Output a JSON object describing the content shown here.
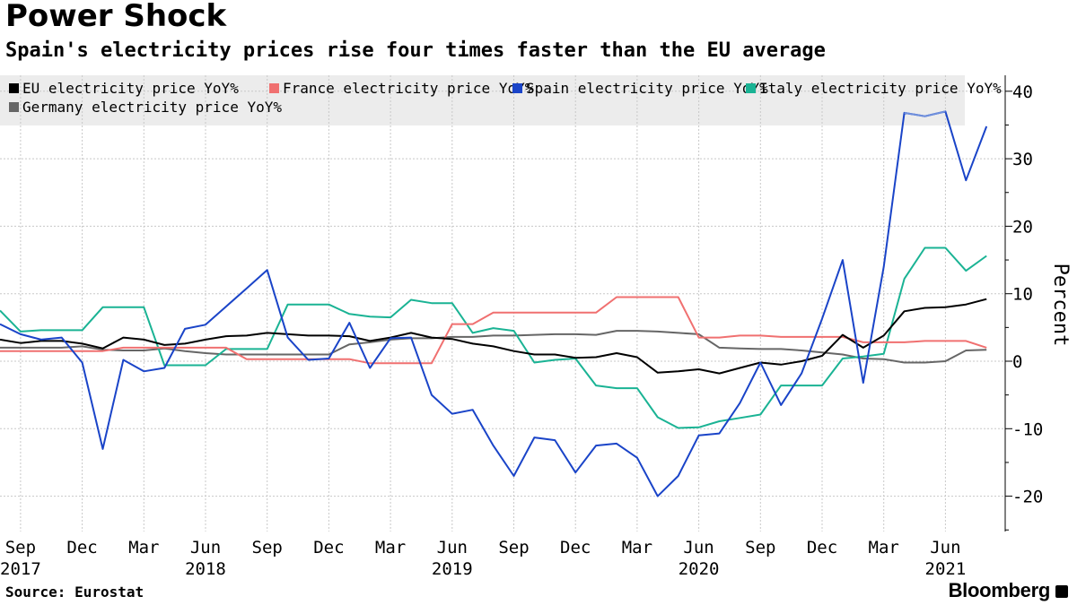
{
  "title": "Power Shock",
  "subtitle": "Spain's electricity prices rise four times faster than the EU average",
  "source": "Source: Eurostat",
  "brand": "Bloomberg",
  "chart_data": {
    "type": "line",
    "title": "Power Shock",
    "subtitle": "Spain's electricity prices rise four times faster than the EU average",
    "xlabel": "",
    "ylabel": "Percent",
    "ylim": [
      -25,
      42
    ],
    "yticks": [
      -20,
      -10,
      0,
      10,
      20,
      30,
      40
    ],
    "ytick_labels": [
      "-20",
      "-10",
      "0",
      "10",
      "20",
      "30",
      "40"
    ],
    "grid": true,
    "legend_position": "top-left",
    "x": [
      "2017-08",
      "2017-09",
      "2017-10",
      "2017-11",
      "2017-12",
      "2018-01",
      "2018-02",
      "2018-03",
      "2018-04",
      "2018-05",
      "2018-06",
      "2018-07",
      "2018-08",
      "2018-09",
      "2018-10",
      "2018-11",
      "2018-12",
      "2019-01",
      "2019-02",
      "2019-03",
      "2019-04",
      "2019-05",
      "2019-06",
      "2019-07",
      "2019-08",
      "2019-09",
      "2019-10",
      "2019-11",
      "2019-12",
      "2020-01",
      "2020-02",
      "2020-03",
      "2020-04",
      "2020-05",
      "2020-06",
      "2020-07",
      "2020-08",
      "2020-09",
      "2020-10",
      "2020-11",
      "2020-12",
      "2021-01",
      "2021-02",
      "2021-03",
      "2021-04",
      "2021-05",
      "2021-06",
      "2021-07",
      "2021-08"
    ],
    "x_ticks": [
      {
        "month": "Sep",
        "year": "2017",
        "index": 1
      },
      {
        "month": "Dec",
        "year": "",
        "index": 4
      },
      {
        "month": "Mar",
        "year": "",
        "index": 7
      },
      {
        "month": "Jun",
        "year": "2018",
        "index": 10
      },
      {
        "month": "Sep",
        "year": "",
        "index": 13
      },
      {
        "month": "Dec",
        "year": "",
        "index": 16
      },
      {
        "month": "Mar",
        "year": "",
        "index": 19
      },
      {
        "month": "Jun",
        "year": "2019",
        "index": 22
      },
      {
        "month": "Sep",
        "year": "",
        "index": 25
      },
      {
        "month": "Dec",
        "year": "",
        "index": 28
      },
      {
        "month": "Mar",
        "year": "",
        "index": 31
      },
      {
        "month": "Jun",
        "year": "2020",
        "index": 34
      },
      {
        "month": "Sep",
        "year": "",
        "index": 37
      },
      {
        "month": "Dec",
        "year": "",
        "index": 40
      },
      {
        "month": "Mar",
        "year": "",
        "index": 43
      },
      {
        "month": "Jun",
        "year": "2021",
        "index": 46
      }
    ],
    "series": [
      {
        "name": "EU electricity price YoY%",
        "color": "#000000",
        "values": [
          3.2,
          2.7,
          3.0,
          3.0,
          2.6,
          1.9,
          3.5,
          3.2,
          2.4,
          2.6,
          3.2,
          3.7,
          3.8,
          4.2,
          4.0,
          3.8,
          3.8,
          3.7,
          3.0,
          3.5,
          4.2,
          3.5,
          3.3,
          2.6,
          2.2,
          1.5,
          1.0,
          1.0,
          0.5,
          0.6,
          1.2,
          0.6,
          -1.7,
          -1.5,
          -1.2,
          -1.8,
          -1.0,
          -0.2,
          -0.5,
          0.0,
          0.8,
          3.9,
          2.0,
          3.8,
          7.4,
          7.9,
          8.0,
          8.4,
          9.2
        ]
      },
      {
        "name": "France electricity price YoY%",
        "color": "#f07070",
        "values": [
          1.5,
          1.5,
          1.5,
          1.5,
          1.5,
          1.5,
          2.0,
          2.0,
          2.0,
          2.0,
          2.0,
          2.0,
          0.3,
          0.3,
          0.3,
          0.3,
          0.3,
          0.3,
          -0.3,
          -0.3,
          -0.3,
          -0.3,
          5.5,
          5.5,
          7.2,
          7.2,
          7.2,
          7.2,
          7.2,
          7.2,
          9.5,
          9.5,
          9.5,
          9.5,
          3.5,
          3.5,
          3.8,
          3.8,
          3.6,
          3.6,
          3.6,
          3.6,
          2.8,
          2.8,
          2.8,
          3.0,
          3.0,
          3.0,
          2.0
        ]
      },
      {
        "name": "Spain electricity price YoY%",
        "color": "#1a44c8",
        "highlight_color": "#6f8fdc",
        "values": [
          5.5,
          4.0,
          3.2,
          3.5,
          -0.2,
          -13.0,
          0.2,
          -1.5,
          -1.0,
          4.8,
          5.4,
          8.1,
          10.8,
          13.5,
          3.5,
          0.2,
          0.4,
          5.7,
          -1.0,
          3.4,
          3.5,
          -5.0,
          -7.8,
          -7.2,
          -12.5,
          -17.0,
          -11.3,
          -11.7,
          -16.5,
          -12.5,
          -12.2,
          -14.3,
          -20.0,
          -17.0,
          -11.0,
          -10.7,
          -6.2,
          -0.2,
          -6.5,
          -1.8,
          6.3,
          15.0,
          -3.2,
          14.0,
          36.8,
          36.3,
          37.0,
          26.8,
          34.8
        ]
      },
      {
        "name": "Italy electricity price YoY%",
        "color": "#1ab394",
        "values": [
          7.5,
          4.4,
          4.6,
          4.6,
          4.6,
          8.0,
          8.0,
          8.0,
          -0.6,
          -0.6,
          -0.6,
          1.8,
          1.8,
          1.8,
          8.4,
          8.4,
          8.4,
          7.0,
          6.6,
          6.5,
          9.1,
          8.6,
          8.6,
          4.2,
          4.9,
          4.5,
          -0.2,
          0.2,
          0.4,
          -3.6,
          -4.0,
          -4.0,
          -8.3,
          -9.9,
          -9.8,
          -8.9,
          -8.4,
          -7.9,
          -3.6,
          -3.6,
          -3.6,
          0.4,
          0.7,
          1.1,
          12.2,
          16.8,
          16.8,
          13.4,
          15.6
        ]
      },
      {
        "name": "Germany electricity price YoY%",
        "color": "#666666",
        "values": [
          2.0,
          2.0,
          2.0,
          2.0,
          2.2,
          1.7,
          1.6,
          1.6,
          1.9,
          1.5,
          1.2,
          1.0,
          1.0,
          1.0,
          1.0,
          1.0,
          1.0,
          2.5,
          2.8,
          3.2,
          3.4,
          3.4,
          3.6,
          3.6,
          3.8,
          3.8,
          3.9,
          4.0,
          4.0,
          3.9,
          4.5,
          4.5,
          4.4,
          4.2,
          4.0,
          2.0,
          1.9,
          1.8,
          1.8,
          1.6,
          1.3,
          1.0,
          0.4,
          0.3,
          -0.2,
          -0.2,
          0.0,
          1.6,
          1.7
        ]
      }
    ]
  }
}
